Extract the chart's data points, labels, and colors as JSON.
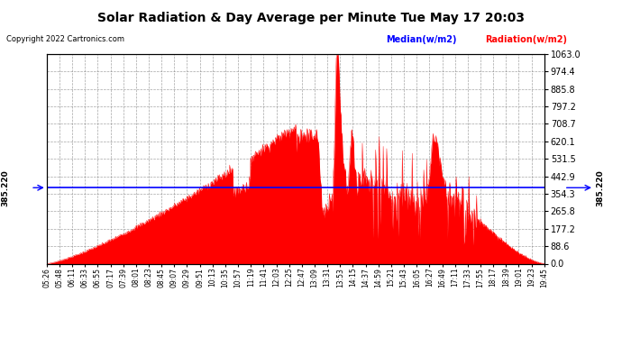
{
  "title": "Solar Radiation & Day Average per Minute Tue May 17 20:03",
  "copyright": "Copyright 2022 Cartronics.com",
  "median_label": "Median(w/m2)",
  "radiation_label": "Radiation(w/m2)",
  "median_value": 385.22,
  "median_annotation": "385.220",
  "y_right_ticks": [
    0.0,
    88.6,
    177.2,
    265.8,
    354.3,
    442.9,
    531.5,
    620.1,
    708.7,
    797.2,
    885.8,
    974.4,
    1063.0
  ],
  "y_max": 1063.0,
  "y_min": 0.0,
  "background_color": "#ffffff",
  "fill_color": "#ff0000",
  "line_color": "#0000ff",
  "x_labels": [
    "05:26",
    "05:48",
    "06:11",
    "06:33",
    "06:55",
    "07:17",
    "07:39",
    "08:01",
    "08:23",
    "08:45",
    "09:07",
    "09:29",
    "09:51",
    "10:13",
    "10:35",
    "10:57",
    "11:19",
    "11:41",
    "12:03",
    "12:25",
    "12:47",
    "13:09",
    "13:31",
    "13:53",
    "14:15",
    "14:37",
    "14:59",
    "15:21",
    "15:43",
    "16:05",
    "16:27",
    "16:49",
    "17:11",
    "17:33",
    "17:55",
    "18:17",
    "18:39",
    "19:01",
    "19:23",
    "19:45"
  ]
}
